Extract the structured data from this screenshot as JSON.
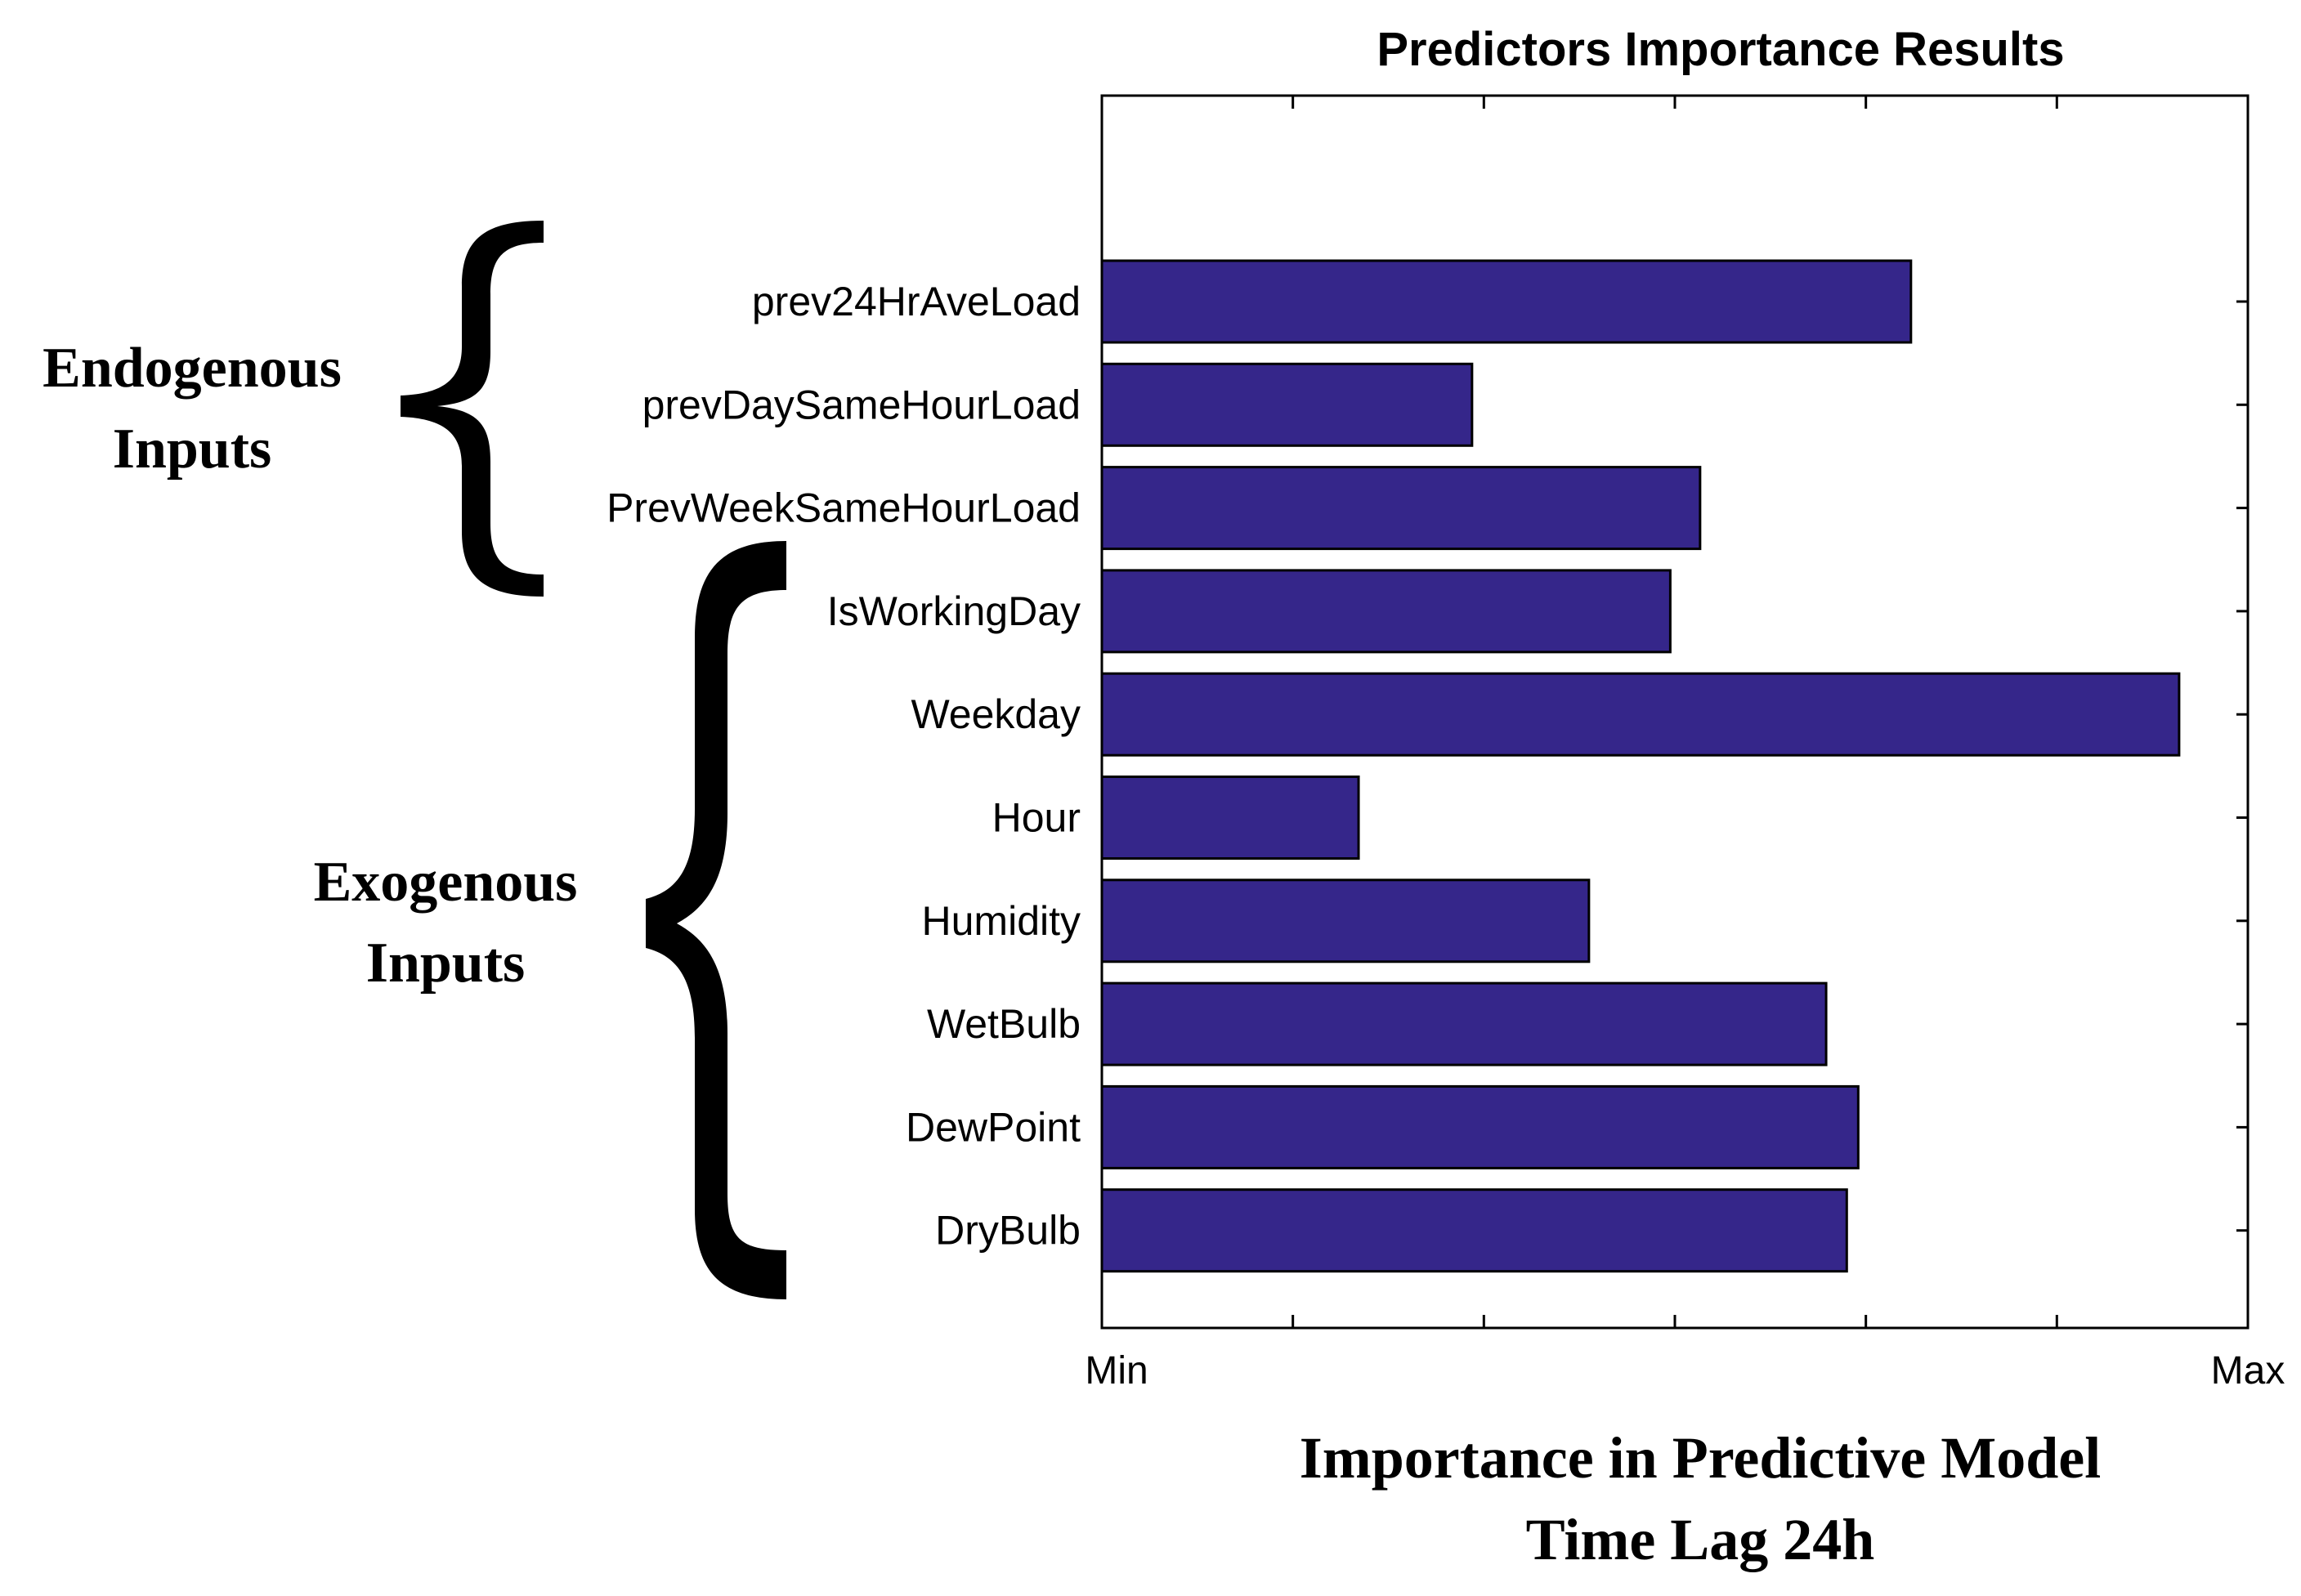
{
  "chart_data": {
    "type": "bar",
    "orientation": "horizontal",
    "title": "Predictors Importance Results",
    "xlabel_line1": "Importance in Predictive Model",
    "xlabel_line2": "Time Lag 24h",
    "x_tick_min_label": "Min",
    "x_tick_max_label": "Max",
    "xlim": [
      0,
      1
    ],
    "bar_color": "#35268a",
    "categories": [
      "prev24HrAveLoad",
      "prevDaySameHourLoad",
      "PrevWeekSameHourLoad",
      "IsWorkingDay",
      "Weekday",
      "Hour",
      "Humidity",
      "WetBulb",
      "DewPoint",
      "DryBulb"
    ],
    "values": [
      0.706,
      0.323,
      0.522,
      0.496,
      0.94,
      0.224,
      0.425,
      0.632,
      0.66,
      0.65
    ],
    "groups": [
      {
        "label_line1": "Endogenous",
        "label_line2": "Inputs",
        "first_index": 0,
        "last_index": 2
      },
      {
        "label_line1": "Exogenous",
        "label_line2": "Inputs",
        "first_index": 3,
        "last_index": 9
      }
    ]
  }
}
